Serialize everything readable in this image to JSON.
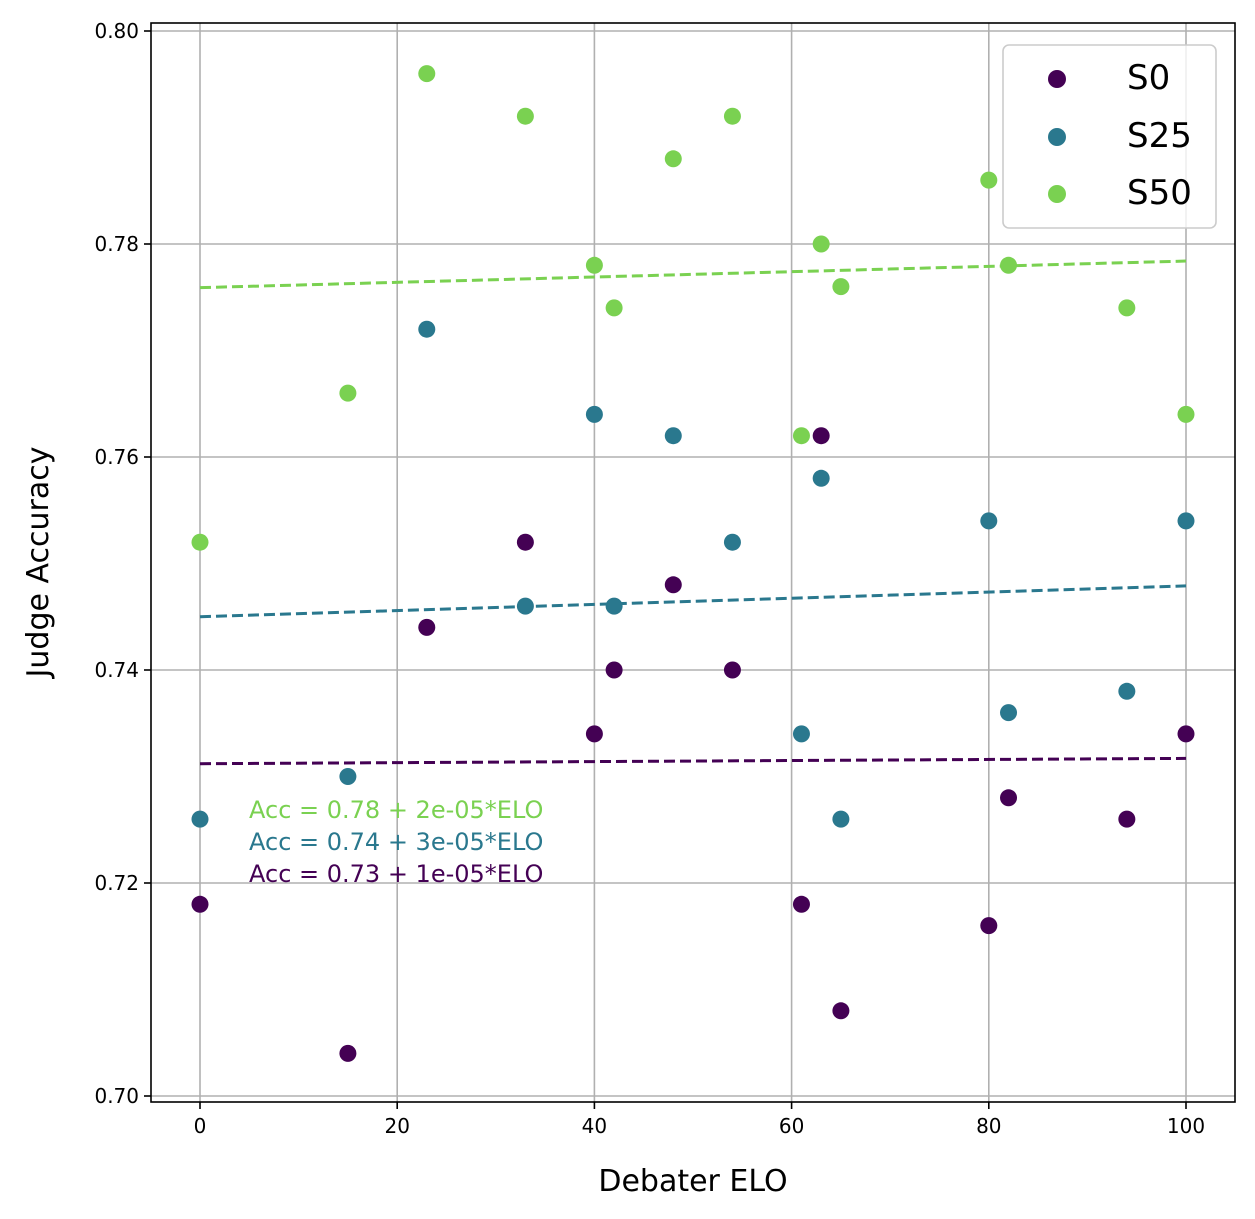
{
  "chart_data": {
    "type": "scatter",
    "title": "",
    "xlabel": "Debater ELO",
    "ylabel": "Judge Accuracy",
    "xlim": [
      -5,
      105
    ],
    "ylim": [
      0.6995,
      0.8012
    ],
    "grid": true,
    "legend_position": "top-right",
    "xticks": [
      0,
      20,
      40,
      60,
      80,
      100
    ],
    "xtick_labels": [
      "0",
      "20",
      "40",
      "60",
      "80",
      "100"
    ],
    "yticks": [
      0.7,
      0.72,
      0.74,
      0.76,
      0.78,
      0.8
    ],
    "ytick_labels": [
      "0.70",
      "0.72",
      "0.74",
      "0.76",
      "0.78",
      "0.80"
    ],
    "x": [
      0,
      15,
      23,
      33,
      40,
      42,
      48,
      54,
      61,
      63,
      65,
      80,
      82,
      94,
      100
    ],
    "series": [
      {
        "name": "S0",
        "color": "#440154",
        "values": [
          0.718,
          0.704,
          0.744,
          0.752,
          0.734,
          0.74,
          0.748,
          0.74,
          0.718,
          0.762,
          0.708,
          0.716,
          0.728,
          0.726,
          0.734
        ],
        "fit": {
          "intercept": 0.7312,
          "slope": 5e-06
        },
        "annotation": "Acc = 0.73 + 1e-05*ELO"
      },
      {
        "name": "S25",
        "color": "#2a788e",
        "values": [
          0.726,
          0.73,
          0.772,
          0.746,
          0.764,
          0.746,
          0.762,
          0.752,
          0.734,
          0.758,
          0.726,
          0.754,
          0.736,
          0.738,
          0.754
        ],
        "fit": {
          "intercept": 0.745,
          "slope": 2.9e-05
        },
        "annotation": "Acc = 0.74 + 3e-05*ELO"
      },
      {
        "name": "S50",
        "color": "#7ad151",
        "values": [
          0.752,
          0.766,
          0.796,
          0.792,
          0.778,
          0.774,
          0.788,
          0.792,
          0.762,
          0.78,
          0.776,
          0.786,
          0.778,
          0.774,
          0.764
        ],
        "fit": {
          "intercept": 0.7759,
          "slope": 2.5e-05
        },
        "annotation": "Acc = 0.78 + 2e-05*ELO"
      }
    ]
  }
}
